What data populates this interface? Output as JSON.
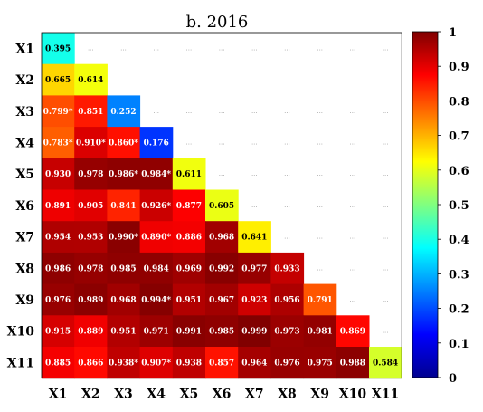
{
  "chart_data": {
    "type": "heatmap",
    "title": "b. 2016",
    "row_labels": [
      "X1",
      "X2",
      "X3",
      "X4",
      "X5",
      "X6",
      "X7",
      "X8",
      "X9",
      "X10",
      "X11"
    ],
    "col_labels": [
      "X1",
      "X2",
      "X3",
      "X4",
      "X5",
      "X6",
      "X7",
      "X8",
      "X9",
      "X10",
      "X11"
    ],
    "values": [
      [
        0.395
      ],
      [
        0.665,
        0.614
      ],
      [
        0.799,
        0.851,
        0.252
      ],
      [
        0.783,
        0.91,
        0.86,
        0.176
      ],
      [
        0.93,
        0.978,
        0.986,
        0.984,
        0.611
      ],
      [
        0.891,
        0.905,
        0.841,
        0.926,
        0.877,
        0.605
      ],
      [
        0.954,
        0.953,
        0.99,
        0.89,
        0.886,
        0.968,
        0.641
      ],
      [
        0.986,
        0.978,
        0.985,
        0.984,
        0.969,
        0.992,
        0.977,
        0.933
      ],
      [
        0.976,
        0.989,
        0.968,
        0.994,
        0.951,
        0.967,
        0.923,
        0.956,
        0.791
      ],
      [
        0.915,
        0.889,
        0.951,
        0.971,
        0.991,
        0.985,
        0.999,
        0.973,
        0.981,
        0.869
      ],
      [
        0.885,
        0.866,
        0.938,
        0.907,
        0.938,
        0.857,
        0.964,
        0.976,
        0.975,
        0.988,
        0.584
      ]
    ],
    "labels": [
      [
        "0.395"
      ],
      [
        "0.665",
        "0.614"
      ],
      [
        "0.799*",
        "0.851",
        "0.252"
      ],
      [
        "0.783*",
        "0.910*",
        "0.860*",
        "0.176"
      ],
      [
        "0.930",
        "0.978",
        "0.986*",
        "0.984*",
        "0.611"
      ],
      [
        "0.891",
        "0.905",
        "0.841",
        "0.926*",
        "0.877",
        "0.605"
      ],
      [
        "0.954",
        "0.953",
        "0.990*",
        "0.890*",
        "0.886",
        "0.968",
        "0.641"
      ],
      [
        "0.986",
        "0.978",
        "0.985",
        "0.984",
        "0.969",
        "0.992",
        "0.977",
        "0.933"
      ],
      [
        "0.976",
        "0.989",
        "0.968",
        "0.994*",
        "0.951",
        "0.967",
        "0.923",
        "0.956",
        "0.791"
      ],
      [
        "0.915",
        "0.889",
        "0.951",
        "0.971",
        "0.991",
        "0.985",
        "0.999",
        "0.973",
        "0.981",
        "0.869"
      ],
      [
        "0.885",
        "0.866",
        "0.938*",
        "0.907*",
        "0.938",
        "0.857",
        "0.964",
        "0.976",
        "0.975",
        "0.988",
        "0.584"
      ]
    ],
    "empty_cell_marker": "...",
    "colorbar": {
      "min": 0,
      "max": 1,
      "ticks": [
        "0",
        "0.1",
        "0.2",
        "0.3",
        "0.4",
        "0.5",
        "0.6",
        "0.7",
        "0.8",
        "0.9",
        "1"
      ],
      "colormap": "jet-like (dark blue to dark red)"
    }
  }
}
